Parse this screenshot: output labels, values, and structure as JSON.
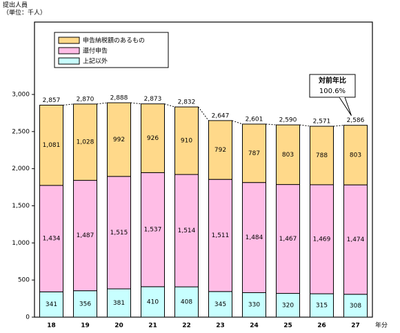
{
  "unit": {
    "line1": "提出人員",
    "line2": "（単位：千人）"
  },
  "x_unit": "年分",
  "callout": {
    "line1": "対前年比",
    "line2": "100.6%"
  },
  "colors": {
    "tax_payable": "#ffd98a",
    "refund": "#ffbde6",
    "other": "#c8ffff",
    "stroke": "#000000"
  },
  "chart_data": {
    "type": "bar",
    "stacked": true,
    "categories": [
      "18",
      "19",
      "20",
      "21",
      "22",
      "23",
      "24",
      "25",
      "26",
      "27"
    ],
    "series": [
      {
        "key": "other",
        "name": "上記以外",
        "values": [
          341,
          356,
          381,
          410,
          408,
          345,
          330,
          320,
          315,
          308
        ]
      },
      {
        "key": "refund",
        "name": "還付申告",
        "values": [
          1434,
          1487,
          1515,
          1537,
          1514,
          1511,
          1484,
          1467,
          1469,
          1474
        ]
      },
      {
        "key": "tax_payable",
        "name": "申告納税額のあるもの",
        "values": [
          1081,
          1028,
          992,
          926,
          910,
          792,
          787,
          803,
          788,
          803
        ]
      }
    ],
    "totals": [
      2857,
      2870,
      2888,
      2873,
      2832,
      2647,
      2601,
      2590,
      2571,
      2586
    ],
    "total_labels": [
      "2,857",
      "2,870",
      "2,888",
      "2,873",
      "2,832",
      "2,647",
      "2,601",
      "2,590",
      "2,571",
      "2,586"
    ],
    "value_labels": {
      "other": [
        "341",
        "356",
        "381",
        "410",
        "408",
        "345",
        "330",
        "320",
        "315",
        "308"
      ],
      "refund": [
        "1,434",
        "1,487",
        "1,515",
        "1,537",
        "1,514",
        "1,511",
        "1,484",
        "1,467",
        "1,469",
        "1,474"
      ],
      "tax_payable": [
        "1,081",
        "1,028",
        "992",
        "926",
        "910",
        "792",
        "787",
        "803",
        "788",
        "803"
      ]
    },
    "ylim": [
      0,
      3000
    ],
    "yticks": [
      0,
      500,
      1000,
      1500,
      2000,
      2500,
      3000
    ],
    "ytick_labels": [
      "0",
      "500",
      "1,000",
      "1,500",
      "2,000",
      "2,500",
      "3,000"
    ],
    "legend_position": "top-left",
    "legend_order": [
      "tax_payable",
      "refund",
      "other"
    ],
    "grid": false
  }
}
